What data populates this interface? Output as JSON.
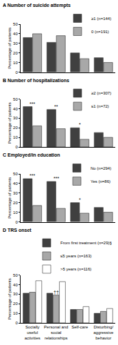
{
  "chart_data": [
    {
      "type": "bar",
      "title": "A Number of suicide attempts",
      "y_label": "Percentage of patients",
      "categories": [
        "Socially useful activities",
        "Personal and social relationships",
        "Self-care",
        "Disturbing/aggressive behavior"
      ],
      "series": [
        {
          "name": "≥1 (n=144)",
          "color": "#404040",
          "values": [
            36,
            31,
            20,
            15
          ]
        },
        {
          "name": "0 (n=191)",
          "color": "#a8a8a8",
          "values": [
            40,
            38,
            14,
            10
          ]
        }
      ],
      "ylim": [
        0,
        50
      ],
      "yticks": [
        0,
        10,
        20,
        30,
        40,
        50
      ],
      "grid": false,
      "tick_labels": "y"
    },
    {
      "type": "bar",
      "title": "B Number of hospitalizations",
      "y_label": "Percentage of patients",
      "categories": [
        "Socially useful activities",
        "Personal and social relationships",
        "Self-care",
        "Disturbing/aggressive behavior"
      ],
      "series": [
        {
          "name": "≥2 (n=307)",
          "color": "#404040",
          "values": [
            42,
            39,
            20,
            15
          ]
        },
        {
          "name": "≤1 (n=72)",
          "color": "#a8a8a8",
          "values": [
            22,
            19,
            8,
            10
          ]
        }
      ],
      "ylim": [
        0,
        50
      ],
      "yticks": [
        0,
        10,
        20,
        30,
        40,
        50
      ],
      "grid": false,
      "tick_labels": "y",
      "annotations": [
        {
          "text": "***",
          "category": "Socially useful activities"
        },
        {
          "text": "**",
          "category": "Personal and social relationships"
        },
        {
          "text": "*",
          "category": "Self-care"
        }
      ]
    },
    {
      "type": "bar",
      "title": "C Employed/in education",
      "y_label": "Percentage of patients",
      "categories": [
        "Socially useful activities",
        "Personal and social relationships",
        "Self-care",
        "Disturbing/aggressive behavior"
      ],
      "series": [
        {
          "name": "No (n=294)",
          "color": "#404040",
          "values": [
            45,
            42,
            20,
            15
          ]
        },
        {
          "name": "Yes (n=86)",
          "color": "#a8a8a8",
          "values": [
            17,
            14,
            9,
            10
          ]
        }
      ],
      "ylim": [
        0,
        50
      ],
      "yticks": [
        0,
        10,
        20,
        30,
        40,
        50
      ],
      "grid": false,
      "tick_labels": "y",
      "annotations": [
        {
          "text": "***",
          "category": "Socially useful activities"
        },
        {
          "text": "***",
          "category": "Personal and social relationships"
        },
        {
          "text": "*",
          "category": "Self-care"
        }
      ]
    },
    {
      "type": "bar",
      "title": "D TRS onset",
      "y_label": "Percentage of patients",
      "categories": [
        "Socially useful activities",
        "Personal and social relationships",
        "Self-care",
        "Disturbing/aggressive behavior"
      ],
      "series": [
        {
          "name": "From first treatment (n=29)§",
          "color": "#404040",
          "values": [
            31,
            31,
            14,
            10
          ]
        },
        {
          "name": "≤5 years (n=163)",
          "color": "#a8a8a8",
          "values": [
            32,
            29,
            14,
            12
          ]
        },
        {
          "name": ">5 years (n=116)",
          "color": "#ffffff",
          "values": [
            44,
            43,
            17,
            15
          ]
        }
      ],
      "ylim": [
        0,
        50
      ],
      "yticks": [
        0,
        10,
        20,
        30,
        40,
        50
      ],
      "grid": false,
      "annotations": [
        {
          "text": "††",
          "category": "Personal and social relationships",
          "series": "≤5 years (n=163)"
        }
      ]
    }
  ]
}
